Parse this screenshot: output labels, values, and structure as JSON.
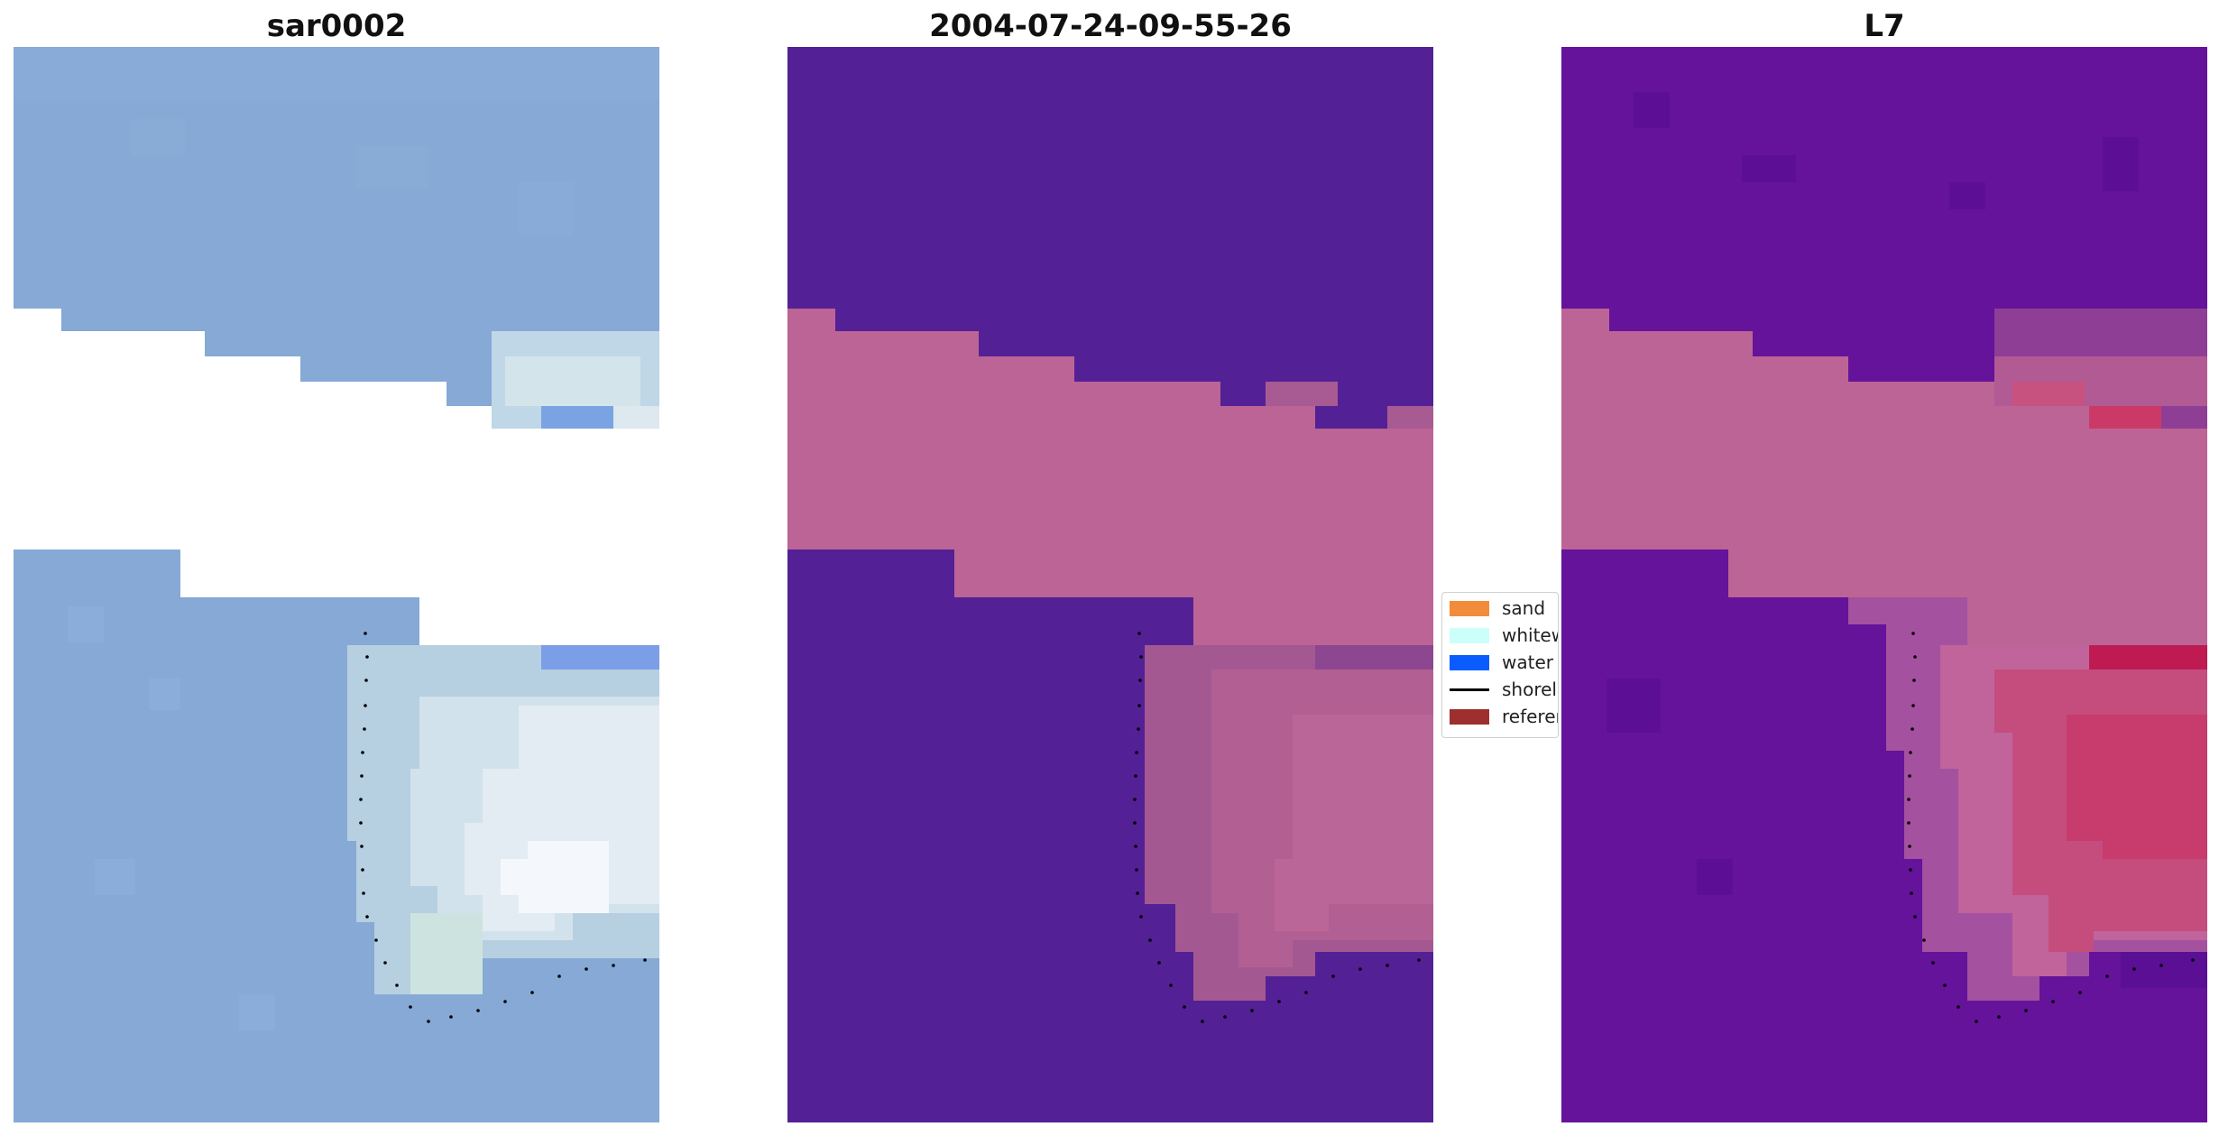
{
  "titles": {
    "left": "sar0002",
    "middle": "2004-07-24-09-55-26",
    "right": "L7"
  },
  "legend": {
    "items": [
      {
        "label": "sand",
        "color": "#f28c3a",
        "kind": "patch"
      },
      {
        "label": "whitew",
        "color": "#ccfffa",
        "kind": "patch"
      },
      {
        "label": "water",
        "color": "#0a5cff",
        "kind": "patch"
      },
      {
        "label": "shoreli",
        "color": "#000000",
        "kind": "line"
      },
      {
        "label": "referen",
        "color": "#9e2f2f",
        "kind": "patch"
      }
    ]
  },
  "colors": {
    "sar_water": "#86a9d6",
    "sar_foam": "#dde8ef",
    "class_background": "#542096",
    "class_band": "#bc6495",
    "l7_background": "#64139a",
    "l7_band": "#bc6495",
    "l7_hot": "#c01a52",
    "shoreline_dots": "#000000"
  }
}
